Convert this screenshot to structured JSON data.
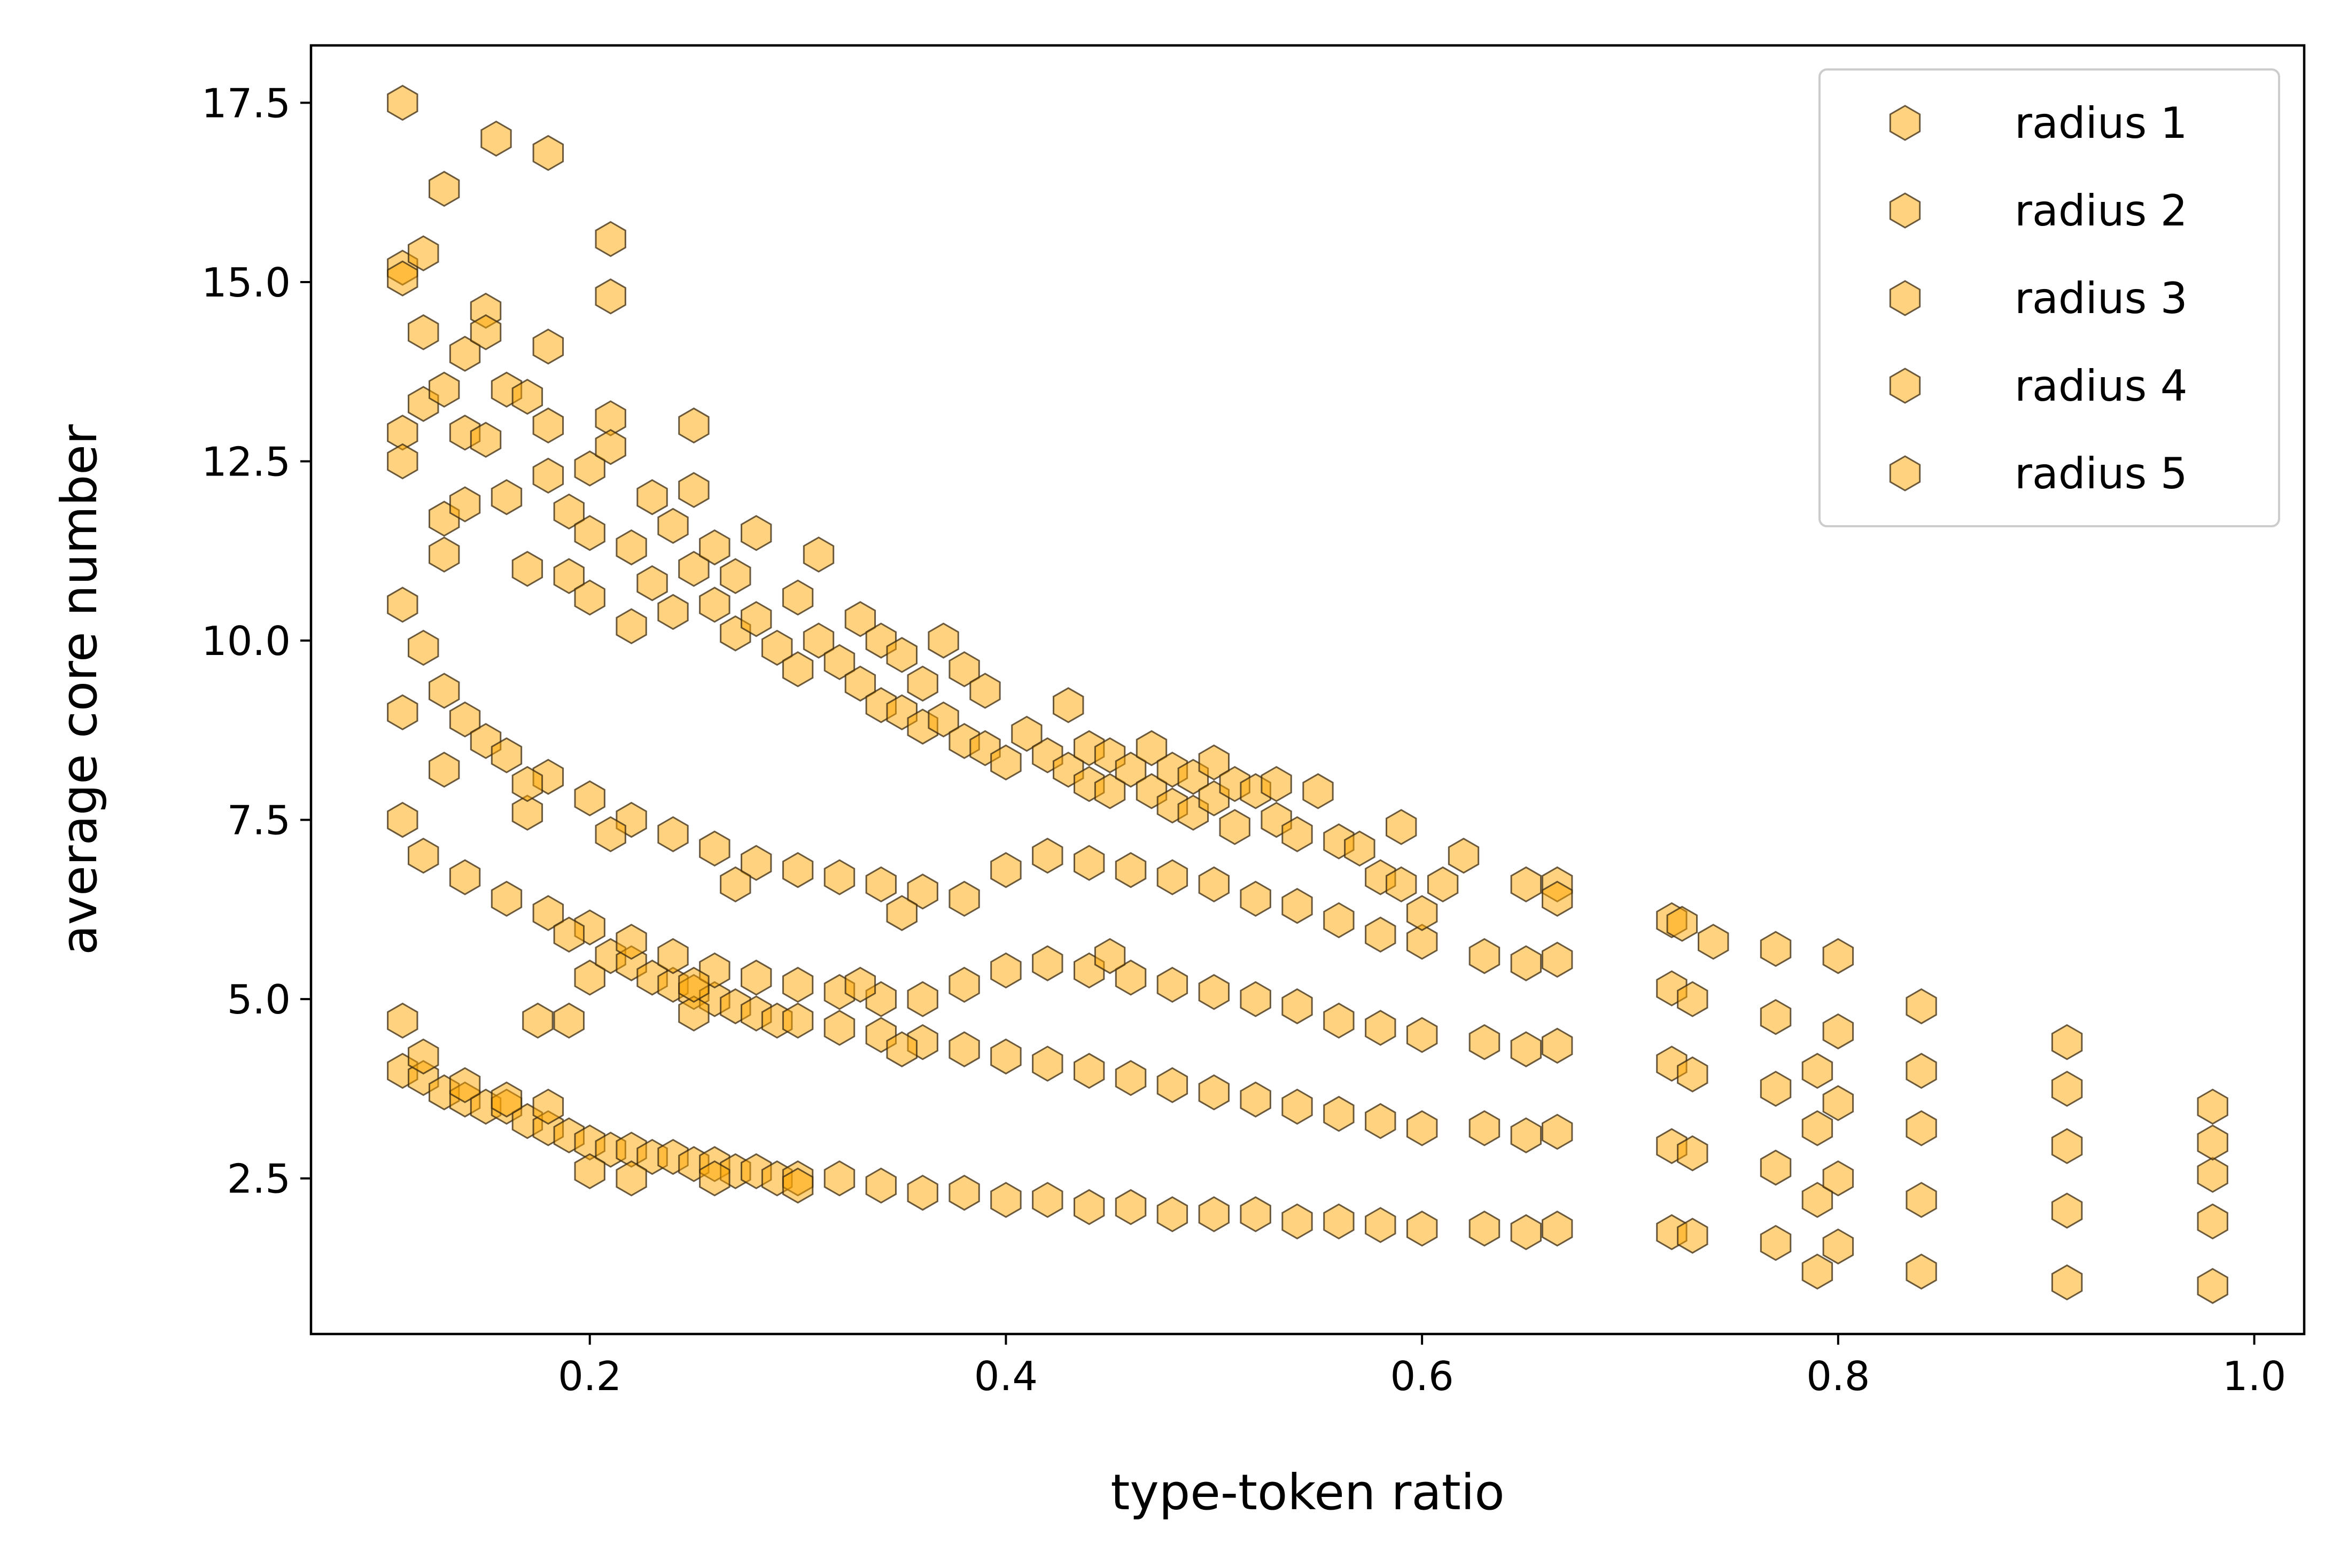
{
  "chart_data": {
    "type": "scatter",
    "xlabel": "type-token ratio",
    "ylabel": "average core number",
    "xlim": [
      0.066,
      1.024
    ],
    "ylim": [
      0.33,
      18.3
    ],
    "x_ticks": [
      0.2,
      0.4,
      0.6,
      0.8,
      1.0
    ],
    "x_tick_labels": [
      "0.2",
      "0.4",
      "0.6",
      "0.8",
      "1.0"
    ],
    "y_ticks": [
      2.5,
      5.0,
      7.5,
      10.0,
      12.5,
      15.0,
      17.5
    ],
    "y_tick_labels": [
      "2.5",
      "5.0",
      "7.5",
      "10.0",
      "12.5",
      "15.0",
      "17.5"
    ],
    "grid": false,
    "legend_position": "top-right",
    "marker": "hexagon",
    "marker_face_color": "#ffa500",
    "marker_edge_color": "#3a2a10",
    "series": [
      {
        "name": "radius 1",
        "points": [
          [
            0.11,
            4.0
          ],
          [
            0.12,
            3.9
          ],
          [
            0.13,
            3.7
          ],
          [
            0.14,
            3.6
          ],
          [
            0.15,
            3.5
          ],
          [
            0.16,
            3.5
          ],
          [
            0.17,
            3.3
          ],
          [
            0.18,
            3.2
          ],
          [
            0.19,
            3.1
          ],
          [
            0.2,
            3.0
          ],
          [
            0.21,
            2.9
          ],
          [
            0.22,
            2.9
          ],
          [
            0.23,
            2.8
          ],
          [
            0.24,
            2.8
          ],
          [
            0.25,
            2.7
          ],
          [
            0.26,
            2.7
          ],
          [
            0.27,
            2.6
          ],
          [
            0.28,
            2.6
          ],
          [
            0.29,
            2.5
          ],
          [
            0.3,
            2.5
          ],
          [
            0.32,
            2.5
          ],
          [
            0.34,
            2.4
          ],
          [
            0.36,
            2.3
          ],
          [
            0.38,
            2.3
          ],
          [
            0.4,
            2.2
          ],
          [
            0.42,
            2.2
          ],
          [
            0.44,
            2.1
          ],
          [
            0.46,
            2.1
          ],
          [
            0.48,
            2.0
          ],
          [
            0.5,
            2.0
          ],
          [
            0.52,
            2.0
          ],
          [
            0.54,
            1.9
          ],
          [
            0.56,
            1.9
          ],
          [
            0.58,
            1.85
          ],
          [
            0.6,
            1.8
          ],
          [
            0.63,
            1.8
          ],
          [
            0.65,
            1.75
          ],
          [
            0.665,
            1.8
          ],
          [
            0.72,
            1.75
          ],
          [
            0.73,
            1.7
          ],
          [
            0.77,
            1.6
          ],
          [
            0.79,
            1.2
          ],
          [
            0.8,
            1.55
          ],
          [
            0.84,
            1.2
          ],
          [
            0.91,
            1.05
          ],
          [
            0.98,
            1.0
          ],
          [
            0.2,
            2.6
          ],
          [
            0.22,
            2.5
          ],
          [
            0.26,
            2.5
          ],
          [
            0.3,
            2.4
          ]
        ]
      },
      {
        "name": "radius 2",
        "points": [
          [
            0.11,
            4.7
          ],
          [
            0.12,
            4.2
          ],
          [
            0.14,
            3.8
          ],
          [
            0.16,
            3.6
          ],
          [
            0.18,
            3.5
          ],
          [
            0.2,
            5.3
          ],
          [
            0.21,
            5.6
          ],
          [
            0.22,
            5.5
          ],
          [
            0.23,
            5.3
          ],
          [
            0.24,
            5.2
          ],
          [
            0.25,
            5.1
          ],
          [
            0.26,
            5.0
          ],
          [
            0.27,
            4.9
          ],
          [
            0.28,
            4.8
          ],
          [
            0.29,
            4.7
          ],
          [
            0.3,
            4.7
          ],
          [
            0.32,
            4.6
          ],
          [
            0.34,
            4.5
          ],
          [
            0.36,
            4.4
          ],
          [
            0.38,
            4.3
          ],
          [
            0.4,
            4.2
          ],
          [
            0.42,
            4.1
          ],
          [
            0.44,
            4.0
          ],
          [
            0.46,
            3.9
          ],
          [
            0.48,
            3.8
          ],
          [
            0.5,
            3.7
          ],
          [
            0.52,
            3.6
          ],
          [
            0.54,
            3.5
          ],
          [
            0.56,
            3.4
          ],
          [
            0.58,
            3.3
          ],
          [
            0.6,
            3.2
          ],
          [
            0.63,
            3.2
          ],
          [
            0.65,
            3.1
          ],
          [
            0.665,
            3.15
          ],
          [
            0.72,
            2.95
          ],
          [
            0.73,
            2.85
          ],
          [
            0.77,
            2.65
          ],
          [
            0.79,
            2.2
          ],
          [
            0.8,
            2.5
          ],
          [
            0.84,
            2.2
          ],
          [
            0.91,
            2.05
          ],
          [
            0.98,
            1.9
          ],
          [
            0.175,
            4.7
          ],
          [
            0.19,
            4.7
          ],
          [
            0.25,
            4.8
          ],
          [
            0.35,
            4.3
          ]
        ]
      },
      {
        "name": "radius 3",
        "points": [
          [
            0.11,
            7.5
          ],
          [
            0.12,
            7.0
          ],
          [
            0.14,
            6.7
          ],
          [
            0.16,
            6.4
          ],
          [
            0.18,
            6.2
          ],
          [
            0.2,
            6.0
          ],
          [
            0.22,
            5.8
          ],
          [
            0.24,
            5.6
          ],
          [
            0.26,
            5.4
          ],
          [
            0.28,
            5.3
          ],
          [
            0.3,
            5.2
          ],
          [
            0.32,
            5.1
          ],
          [
            0.34,
            5.0
          ],
          [
            0.36,
            5.0
          ],
          [
            0.38,
            5.2
          ],
          [
            0.4,
            5.4
          ],
          [
            0.42,
            5.5
          ],
          [
            0.44,
            5.4
          ],
          [
            0.46,
            5.3
          ],
          [
            0.48,
            5.2
          ],
          [
            0.5,
            5.1
          ],
          [
            0.52,
            5.0
          ],
          [
            0.54,
            4.9
          ],
          [
            0.56,
            4.7
          ],
          [
            0.58,
            4.6
          ],
          [
            0.6,
            4.5
          ],
          [
            0.63,
            4.4
          ],
          [
            0.65,
            4.3
          ],
          [
            0.665,
            4.35
          ],
          [
            0.72,
            4.1
          ],
          [
            0.73,
            3.95
          ],
          [
            0.77,
            3.75
          ],
          [
            0.79,
            3.2
          ],
          [
            0.8,
            3.55
          ],
          [
            0.84,
            3.2
          ],
          [
            0.91,
            2.95
          ],
          [
            0.98,
            2.55
          ],
          [
            0.17,
            7.6
          ],
          [
            0.19,
            5.9
          ],
          [
            0.25,
            5.2
          ],
          [
            0.33,
            5.2
          ],
          [
            0.45,
            5.6
          ]
        ]
      },
      {
        "name": "radius 4",
        "points": [
          [
            0.11,
            9.0
          ],
          [
            0.12,
            9.9
          ],
          [
            0.13,
            9.3
          ],
          [
            0.14,
            8.9
          ],
          [
            0.15,
            8.6
          ],
          [
            0.16,
            8.4
          ],
          [
            0.18,
            8.1
          ],
          [
            0.2,
            7.8
          ],
          [
            0.22,
            7.5
          ],
          [
            0.24,
            7.3
          ],
          [
            0.26,
            7.1
          ],
          [
            0.28,
            6.9
          ],
          [
            0.3,
            6.8
          ],
          [
            0.32,
            6.7
          ],
          [
            0.34,
            6.6
          ],
          [
            0.36,
            6.5
          ],
          [
            0.38,
            6.4
          ],
          [
            0.4,
            6.8
          ],
          [
            0.42,
            7.0
          ],
          [
            0.44,
            6.9
          ],
          [
            0.46,
            6.8
          ],
          [
            0.48,
            6.7
          ],
          [
            0.5,
            6.6
          ],
          [
            0.52,
            6.4
          ],
          [
            0.54,
            6.3
          ],
          [
            0.56,
            6.1
          ],
          [
            0.58,
            5.9
          ],
          [
            0.6,
            5.8
          ],
          [
            0.63,
            5.6
          ],
          [
            0.65,
            5.5
          ],
          [
            0.665,
            5.55
          ],
          [
            0.72,
            5.15
          ],
          [
            0.73,
            5.0
          ],
          [
            0.77,
            4.75
          ],
          [
            0.79,
            4.0
          ],
          [
            0.8,
            4.55
          ],
          [
            0.84,
            4.0
          ],
          [
            0.91,
            3.75
          ],
          [
            0.98,
            3.0
          ],
          [
            0.13,
            8.2
          ],
          [
            0.17,
            8.0
          ],
          [
            0.21,
            7.3
          ],
          [
            0.27,
            6.6
          ],
          [
            0.35,
            6.2
          ]
        ]
      },
      {
        "name": "radius 5",
        "points": [
          [
            0.11,
            17.5
          ],
          [
            0.11,
            15.2
          ],
          [
            0.11,
            15.05
          ],
          [
            0.11,
            12.9
          ],
          [
            0.11,
            12.5
          ],
          [
            0.11,
            10.5
          ],
          [
            0.12,
            15.4
          ],
          [
            0.12,
            14.3
          ],
          [
            0.12,
            13.3
          ],
          [
            0.13,
            16.3
          ],
          [
            0.13,
            13.5
          ],
          [
            0.13,
            11.7
          ],
          [
            0.13,
            11.2
          ],
          [
            0.14,
            14.0
          ],
          [
            0.14,
            12.9
          ],
          [
            0.14,
            11.9
          ],
          [
            0.15,
            14.6
          ],
          [
            0.15,
            14.3
          ],
          [
            0.15,
            12.8
          ],
          [
            0.155,
            17.0
          ],
          [
            0.16,
            13.5
          ],
          [
            0.16,
            12.0
          ],
          [
            0.17,
            13.4
          ],
          [
            0.17,
            11.0
          ],
          [
            0.18,
            16.8
          ],
          [
            0.18,
            14.1
          ],
          [
            0.18,
            13.0
          ],
          [
            0.18,
            12.3
          ],
          [
            0.19,
            11.8
          ],
          [
            0.19,
            10.9
          ],
          [
            0.2,
            12.4
          ],
          [
            0.2,
            11.5
          ],
          [
            0.2,
            10.6
          ],
          [
            0.21,
            15.6
          ],
          [
            0.21,
            14.8
          ],
          [
            0.21,
            13.1
          ],
          [
            0.21,
            12.7
          ],
          [
            0.22,
            11.3
          ],
          [
            0.22,
            10.2
          ],
          [
            0.23,
            12.0
          ],
          [
            0.23,
            10.8
          ],
          [
            0.24,
            11.6
          ],
          [
            0.24,
            10.4
          ],
          [
            0.25,
            13.0
          ],
          [
            0.25,
            12.1
          ],
          [
            0.25,
            11.0
          ],
          [
            0.26,
            11.3
          ],
          [
            0.26,
            10.5
          ],
          [
            0.27,
            10.9
          ],
          [
            0.27,
            10.1
          ],
          [
            0.28,
            11.5
          ],
          [
            0.28,
            10.3
          ],
          [
            0.29,
            9.9
          ],
          [
            0.3,
            10.6
          ],
          [
            0.3,
            9.6
          ],
          [
            0.31,
            11.2
          ],
          [
            0.31,
            10.0
          ],
          [
            0.32,
            9.7
          ],
          [
            0.33,
            10.3
          ],
          [
            0.33,
            9.4
          ],
          [
            0.34,
            10.0
          ],
          [
            0.34,
            9.1
          ],
          [
            0.35,
            9.8
          ],
          [
            0.35,
            9.0
          ],
          [
            0.36,
            9.4
          ],
          [
            0.36,
            8.8
          ],
          [
            0.37,
            10.0
          ],
          [
            0.37,
            8.9
          ],
          [
            0.38,
            9.6
          ],
          [
            0.38,
            8.6
          ],
          [
            0.39,
            9.3
          ],
          [
            0.39,
            8.5
          ],
          [
            0.4,
            8.3
          ],
          [
            0.41,
            8.7
          ],
          [
            0.42,
            8.4
          ],
          [
            0.43,
            9.1
          ],
          [
            0.43,
            8.2
          ],
          [
            0.44,
            8.5
          ],
          [
            0.44,
            8.0
          ],
          [
            0.45,
            8.4
          ],
          [
            0.45,
            7.9
          ],
          [
            0.46,
            8.2
          ],
          [
            0.47,
            8.5
          ],
          [
            0.47,
            7.9
          ],
          [
            0.48,
            8.2
          ],
          [
            0.48,
            7.7
          ],
          [
            0.49,
            8.1
          ],
          [
            0.49,
            7.6
          ],
          [
            0.5,
            8.3
          ],
          [
            0.5,
            7.8
          ],
          [
            0.51,
            8.0
          ],
          [
            0.51,
            7.4
          ],
          [
            0.52,
            7.9
          ],
          [
            0.53,
            8.0
          ],
          [
            0.53,
            7.5
          ],
          [
            0.54,
            7.3
          ],
          [
            0.55,
            7.9
          ],
          [
            0.56,
            7.2
          ],
          [
            0.57,
            7.1
          ],
          [
            0.58,
            6.7
          ],
          [
            0.59,
            7.4
          ],
          [
            0.59,
            6.6
          ],
          [
            0.6,
            6.2
          ],
          [
            0.61,
            6.6
          ],
          [
            0.62,
            7.0
          ],
          [
            0.65,
            6.6
          ],
          [
            0.665,
            6.6
          ],
          [
            0.665,
            6.4
          ],
          [
            0.72,
            6.1
          ],
          [
            0.725,
            6.05
          ],
          [
            0.74,
            5.8
          ],
          [
            0.77,
            5.7
          ],
          [
            0.8,
            5.6
          ],
          [
            0.84,
            4.9
          ],
          [
            0.91,
            4.4
          ],
          [
            0.98,
            3.5
          ]
        ]
      }
    ]
  }
}
